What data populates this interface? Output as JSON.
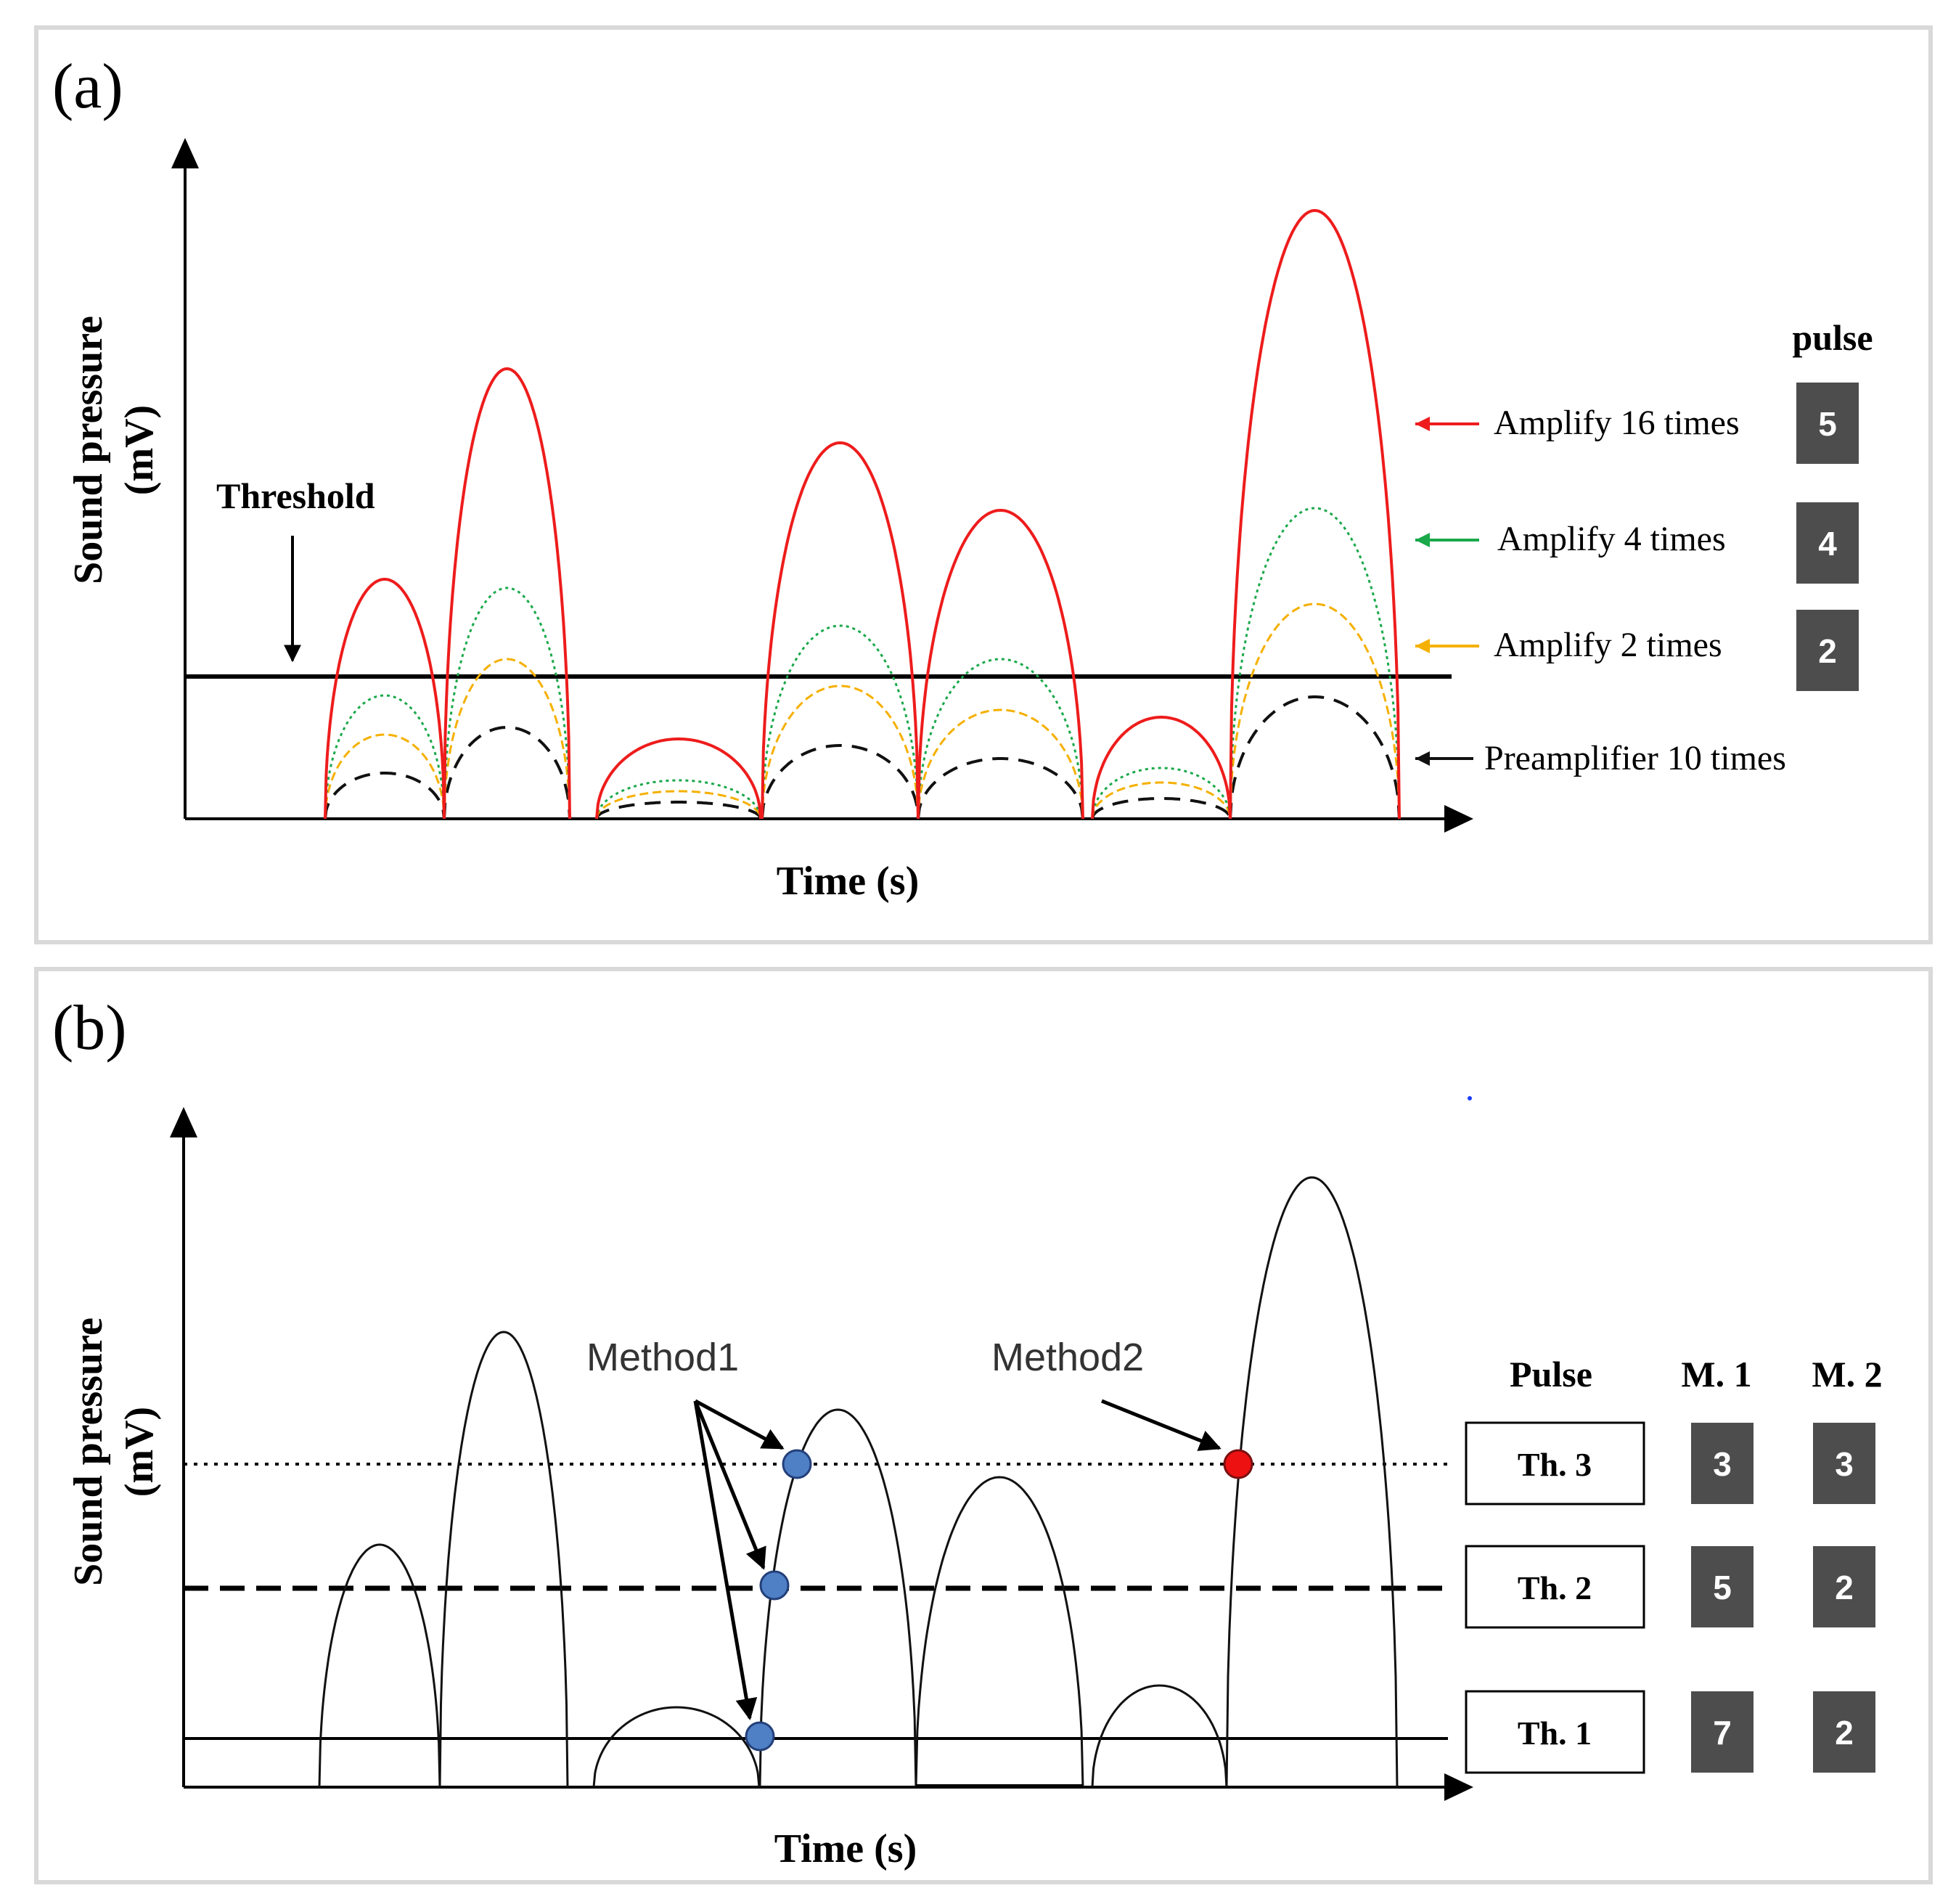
{
  "colors": {
    "amp16": "#ee1c1c",
    "amp4": "#1aa84a",
    "amp2": "#f5b000",
    "pre": "#111111",
    "dot_blue": "#4f7fc4",
    "dot_red": "#ee1111",
    "badge": "#4d4d4d"
  },
  "panel_a": {
    "label": "(a)",
    "ylabel_line1": "Sound pressure",
    "ylabel_line2": "(mV)",
    "xlabel": "Time (s)",
    "threshold_label": "Threshold",
    "pulse_header": "pulse",
    "legend": [
      {
        "text": "Amplify 16 times",
        "color": "amp16",
        "pulse": "5"
      },
      {
        "text": "Amplify 4 times",
        "color": "amp4",
        "pulse": "4"
      },
      {
        "text": "Amplify 2 times",
        "color": "amp2",
        "pulse": "2"
      },
      {
        "text": "Preamplifier 10 times",
        "color": "pre",
        "pulse": ""
      }
    ]
  },
  "panel_b": {
    "label": "(b)",
    "ylabel_line1": "Sound pressure",
    "ylabel_line2": "(mV)",
    "xlabel": "Time (s)",
    "method1": "Method1",
    "method2": "Method2",
    "table_headers": [
      "Pulse",
      "M. 1",
      "M. 2"
    ],
    "rows": [
      {
        "threshold": "Th. 3",
        "m1": "3",
        "m2": "3"
      },
      {
        "threshold": "Th. 2",
        "m1": "5",
        "m2": "2"
      },
      {
        "threshold": "Th. 1",
        "m1": "7",
        "m2": "2"
      }
    ]
  }
}
